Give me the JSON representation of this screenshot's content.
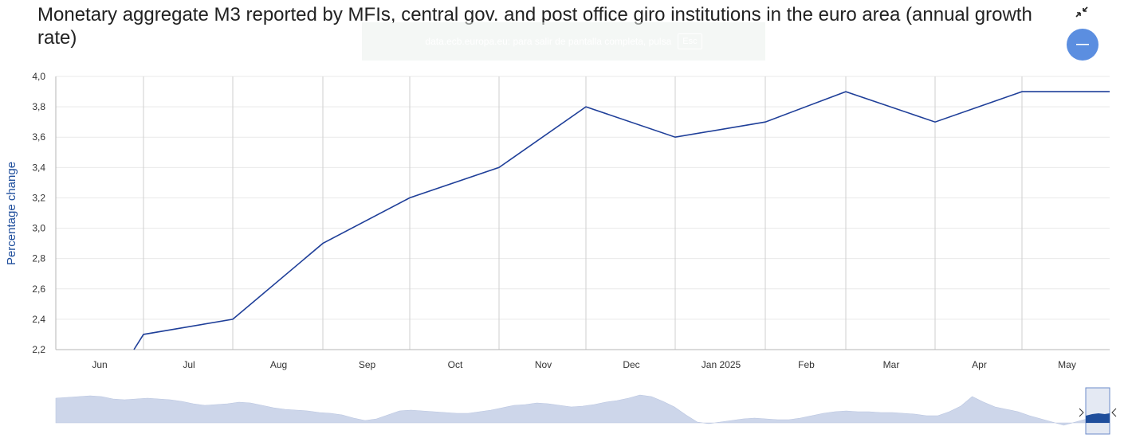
{
  "header": {
    "title": "Monetary aggregate M3 reported by MFIs, central gov. and post office giro institutions in the euro area (annual growth rate)"
  },
  "fullscreen_toast": {
    "text": "data.ecb.europa.eu: para salir de pantalla completa, pulsa",
    "key": "Esc"
  },
  "icons": {
    "exit_fullscreen": "exit-fullscreen-icon",
    "menu": "hamburger-menu-icon"
  },
  "colors": {
    "series": "#1f3f99",
    "axis_label": "#1f4e9c",
    "menu_button": "#5b8ee0",
    "navigator_fill": "#cdd6ea",
    "navigator_selected": "#1f4e9c"
  },
  "chart_data": {
    "type": "line",
    "title": "Monetary aggregate M3 reported by MFIs, central gov. and post office giro institutions in the euro area (annual growth rate)",
    "xlabel": "",
    "ylabel": "Percentage change",
    "ylim": [
      2.2,
      4.0
    ],
    "yticks": [
      "2,2",
      "2,4",
      "2,6",
      "2,8",
      "3,0",
      "3,2",
      "3,4",
      "3,6",
      "3,8",
      "4,0"
    ],
    "categories": [
      "Jun",
      "Jul",
      "Aug",
      "Sep",
      "Oct",
      "Nov",
      "Dec",
      "Jan 2025",
      "Feb",
      "Mar",
      "Apr",
      "May"
    ],
    "series": [
      {
        "name": "",
        "x": [
          "2024-05",
          "2024-06",
          "2024-07",
          "2024-08",
          "2024-09",
          "2024-10",
          "2024-11",
          "2024-12",
          "2025-01",
          "2025-02",
          "2025-03",
          "2025-04",
          "2025-05"
        ],
        "values": [
          2.2,
          2.3,
          2.4,
          2.9,
          3.2,
          3.4,
          3.8,
          3.6,
          3.7,
          3.9,
          3.7,
          3.9,
          3.9
        ]
      }
    ],
    "grid": true,
    "legend": "none",
    "navigator": true
  }
}
